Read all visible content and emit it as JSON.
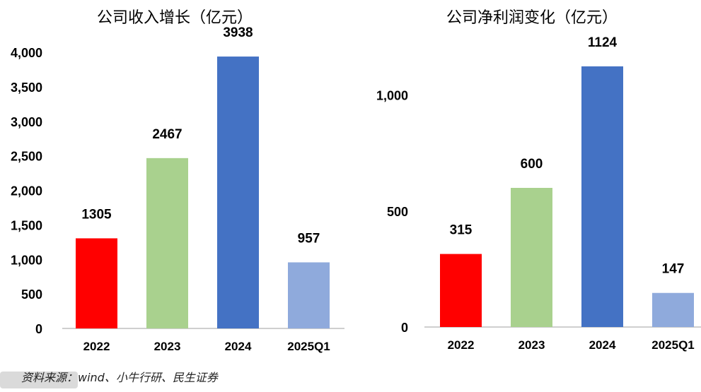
{
  "chart_data": [
    {
      "type": "bar",
      "title": "公司收入增长（亿元）",
      "categories": [
        "2022",
        "2023",
        "2024",
        "2025Q1"
      ],
      "values": [
        1305,
        2467,
        3938,
        957
      ],
      "data_labels": [
        "1305",
        "2467",
        "3938",
        "957"
      ],
      "colors": [
        "#ff0000",
        "#a9d18e",
        "#4472c4",
        "#8faadc"
      ],
      "ylim": [
        0,
        4000
      ],
      "yticks": [
        0,
        500,
        1000,
        1500,
        2000,
        2500,
        3000,
        3500,
        4000
      ],
      "ytick_labels": [
        "0",
        "500",
        "1,000",
        "1,500",
        "2,000",
        "2,500",
        "3,000",
        "3,500",
        "4,000"
      ],
      "grid": false,
      "legend": "none"
    },
    {
      "type": "bar",
      "title": "公司净利润变化（亿元）",
      "categories": [
        "2022",
        "2023",
        "2024",
        "2025Q1"
      ],
      "values": [
        315,
        600,
        1124,
        147
      ],
      "data_labels": [
        "315",
        "600",
        "1124",
        "147"
      ],
      "colors": [
        "#ff0000",
        "#a9d18e",
        "#4472c4",
        "#8faadc"
      ],
      "ylim": [
        0,
        1200
      ],
      "yticks": [
        0,
        500,
        1000
      ],
      "ytick_labels": [
        "0",
        "500",
        "1,000"
      ],
      "grid": false,
      "legend": "none"
    }
  ],
  "footer": {
    "source": "资料来源：wind、小牛行研、民生证券"
  }
}
